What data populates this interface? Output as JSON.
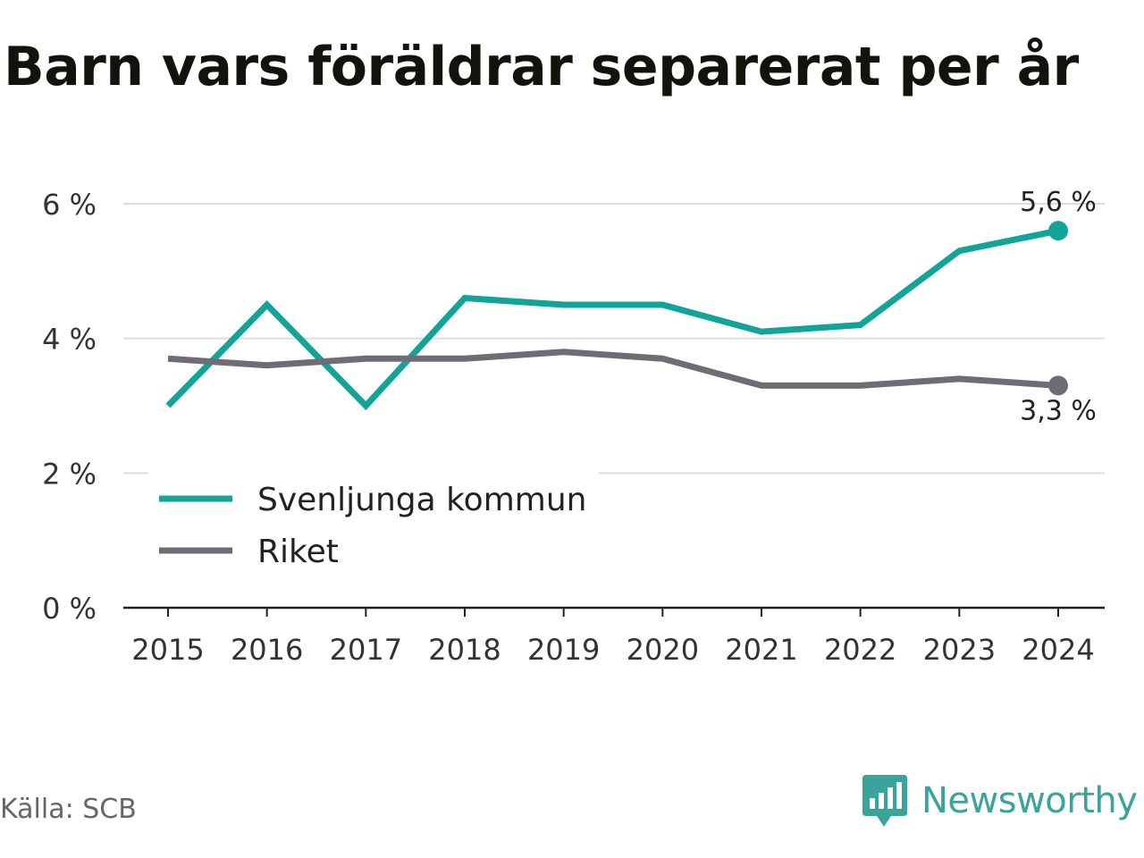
{
  "title": "Barn vars föräldrar separerat per år",
  "source": "Källa: SCB",
  "brand": {
    "name": "Newsworthy",
    "icon": "newsworthy-logo-icon",
    "color": "#3aa39b"
  },
  "chart_data": {
    "type": "line",
    "title": "Barn vars föräldrar separerat per år",
    "xlabel": "",
    "ylabel": "",
    "categories": [
      "2015",
      "2016",
      "2017",
      "2018",
      "2019",
      "2020",
      "2021",
      "2022",
      "2023",
      "2024"
    ],
    "ylim": [
      0,
      6
    ],
    "yticks": [
      {
        "value": 0,
        "label": "0 %"
      },
      {
        "value": 2,
        "label": "2 %"
      },
      {
        "value": 4,
        "label": "4 %"
      },
      {
        "value": 6,
        "label": "6 %"
      }
    ],
    "grid": true,
    "legend_position": "bottom-left",
    "series": [
      {
        "name": "Svenljunga kommun",
        "color": "#12a399",
        "values": [
          3.0,
          4.5,
          3.0,
          4.6,
          4.5,
          4.5,
          4.1,
          4.2,
          5.3,
          5.6
        ],
        "end_label": "5,6 %"
      },
      {
        "name": "Riket",
        "color": "#6e6d75",
        "values": [
          3.7,
          3.6,
          3.7,
          3.7,
          3.8,
          3.7,
          3.3,
          3.3,
          3.4,
          3.3
        ],
        "end_label": "3,3 %"
      }
    ]
  }
}
